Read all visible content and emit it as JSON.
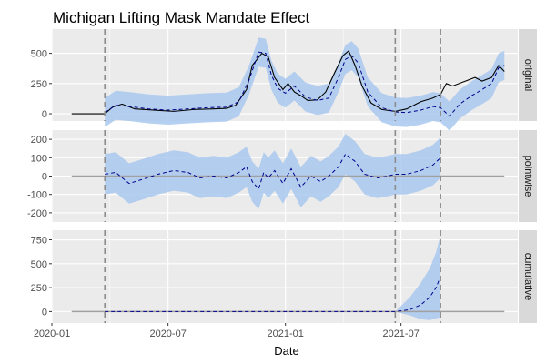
{
  "chart_data": {
    "type": "line",
    "title": "Michigan Lifting Mask Mandate Effect",
    "xlabel": "Date",
    "x_ticks": [
      "2020-01",
      "2020-07",
      "2021-01",
      "2021-07"
    ],
    "x_range": [
      "2020-01-01",
      "2021-12-31"
    ],
    "interventions": [
      "2020-03-24",
      "2021-06-22",
      "2021-09-01"
    ],
    "colors": {
      "panel_bg": "#EBEBEB",
      "strip_bg": "#D9D9D9",
      "grid": "#FFFFFF",
      "band": "#A9C8EE",
      "observed": "#000000",
      "predicted": "#00008B",
      "zero_line": "#A0A0A0",
      "vline": "#8C8C8C"
    },
    "panels": [
      {
        "label": "original",
        "y_ticks": [
          0,
          250,
          500
        ],
        "ylim": [
          -60,
          700
        ],
        "observed": {
          "x": [
            "2020-02-01",
            "2020-03-24",
            "2020-04-05",
            "2020-04-20",
            "2020-05-10",
            "2020-06-10",
            "2020-07-10",
            "2020-08-10",
            "2020-09-10",
            "2020-10-01",
            "2020-10-15",
            "2020-11-01",
            "2020-11-10",
            "2020-11-25",
            "2020-12-05",
            "2020-12-15",
            "2020-12-28",
            "2021-01-05",
            "2021-01-15",
            "2021-01-25",
            "2021-02-05",
            "2021-02-20",
            "2021-03-05",
            "2021-03-20",
            "2021-04-01",
            "2021-04-10",
            "2021-04-20",
            "2021-05-01",
            "2021-05-15",
            "2021-06-01",
            "2021-06-22",
            "2021-07-10",
            "2021-08-01",
            "2021-08-20",
            "2021-09-01",
            "2021-09-10",
            "2021-09-20",
            "2021-10-10",
            "2021-10-25",
            "2021-11-05",
            "2021-11-20",
            "2021-12-01",
            "2021-12-10"
          ],
          "y": [
            0,
            0,
            55,
            80,
            40,
            30,
            20,
            35,
            40,
            45,
            70,
            200,
            400,
            500,
            470,
            300,
            200,
            250,
            180,
            150,
            110,
            115,
            180,
            350,
            480,
            520,
            400,
            230,
            90,
            35,
            20,
            40,
            100,
            130,
            160,
            250,
            230,
            270,
            300,
            270,
            300,
            400,
            350
          ]
        },
        "predicted": {
          "x": [
            "2020-03-24",
            "2020-04-10",
            "2020-05-01",
            "2020-06-01",
            "2020-07-01",
            "2020-08-01",
            "2020-09-01",
            "2020-10-01",
            "2020-10-20",
            "2020-11-05",
            "2020-11-20",
            "2020-12-01",
            "2020-12-10",
            "2020-12-20",
            "2021-01-01",
            "2021-01-15",
            "2021-02-01",
            "2021-02-20",
            "2021-03-10",
            "2021-03-25",
            "2021-04-05",
            "2021-04-15",
            "2021-04-25",
            "2021-05-10",
            "2021-06-01",
            "2021-06-22",
            "2021-07-10",
            "2021-08-01",
            "2021-08-20",
            "2021-09-01",
            "2021-09-15",
            "2021-10-01",
            "2021-10-20",
            "2021-11-05",
            "2021-11-20",
            "2021-12-01",
            "2021-12-10"
          ],
          "y": [
            10,
            70,
            60,
            40,
            30,
            40,
            50,
            55,
            100,
            280,
            510,
            500,
            320,
            210,
            170,
            230,
            140,
            110,
            130,
            300,
            450,
            480,
            420,
            180,
            50,
            15,
            10,
            30,
            60,
            50,
            -20,
            80,
            150,
            200,
            250,
            380,
            400
          ]
        },
        "band_halfwidth": 120
      },
      {
        "label": "pointwise",
        "y_ticks": [
          -200,
          -100,
          0,
          100,
          200
        ],
        "ylim": [
          -250,
          250
        ],
        "pointwise": {
          "x": [
            "2020-03-24",
            "2020-04-10",
            "2020-05-01",
            "2020-05-20",
            "2020-06-15",
            "2020-07-10",
            "2020-08-01",
            "2020-08-20",
            "2020-09-10",
            "2020-10-01",
            "2020-10-20",
            "2020-11-01",
            "2020-11-10",
            "2020-11-20",
            "2020-11-28",
            "2020-12-05",
            "2020-12-15",
            "2020-12-28",
            "2021-01-10",
            "2021-01-25",
            "2021-02-10",
            "2021-02-25",
            "2021-03-10",
            "2021-03-25",
            "2021-04-05",
            "2021-04-20",
            "2021-05-05",
            "2021-05-25",
            "2021-06-10",
            "2021-06-22",
            "2021-07-10",
            "2021-08-01",
            "2021-08-20",
            "2021-09-01"
          ],
          "y": [
            10,
            20,
            -40,
            -20,
            10,
            30,
            20,
            -10,
            0,
            -10,
            20,
            50,
            -30,
            -70,
            20,
            -10,
            30,
            -40,
            40,
            -60,
            0,
            -30,
            0,
            50,
            120,
            80,
            10,
            -10,
            0,
            10,
            10,
            30,
            60,
            100
          ]
        },
        "band_halfwidth": 110
      },
      {
        "label": "cumulative",
        "y_ticks": [
          0,
          250,
          500,
          750
        ],
        "ylim": [
          -120,
          850
        ],
        "cumulative": {
          "x": [
            "2020-03-24",
            "2021-06-22",
            "2021-07-15",
            "2021-08-01",
            "2021-08-15",
            "2021-08-25",
            "2021-09-01"
          ],
          "y": [
            0,
            0,
            20,
            70,
            150,
            250,
            370
          ]
        },
        "band_upper": [
          0,
          0,
          150,
          300,
          450,
          620,
          800
        ],
        "band_lower": [
          0,
          0,
          -40,
          -80,
          -90,
          -70,
          -60
        ]
      }
    ]
  }
}
